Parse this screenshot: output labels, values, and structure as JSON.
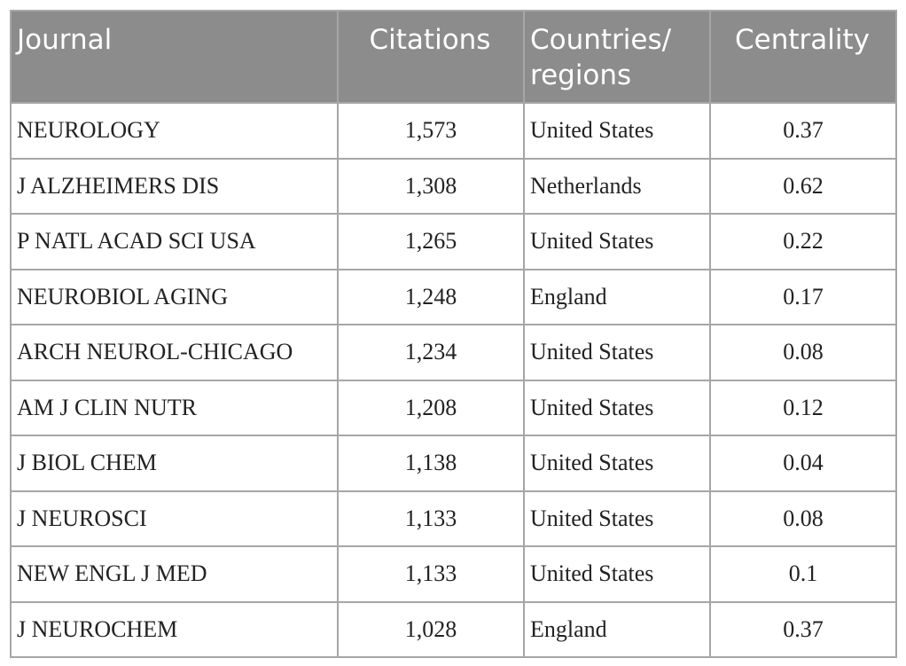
{
  "table": {
    "header": [
      "Journal",
      "Citations",
      "Countries/ regions",
      "Centrality"
    ],
    "rows": [
      [
        "NEUROLOGY",
        "1,573",
        "United States",
        "0.37"
      ],
      [
        "J ALZHEIMERS DIS",
        "1,308",
        "Netherlands",
        "0.62"
      ],
      [
        "P NATL ACAD SCI USA",
        "1,265",
        "United States",
        "0.22"
      ],
      [
        "NEUROBIOL AGING",
        "1,248",
        "England",
        "0.17"
      ],
      [
        "ARCH NEUROL-CHICAGO",
        "1,234",
        "United States",
        "0.08"
      ],
      [
        "AM J CLIN NUTR",
        "1,208",
        "United States",
        "0.12"
      ],
      [
        "J BIOL CHEM",
        "1,138",
        "United States",
        "0.04"
      ],
      [
        "J NEUROSCI",
        "1,133",
        "United States",
        "0.08"
      ],
      [
        "NEW ENGL J MED",
        "1,133",
        "United States",
        "0.1"
      ],
      [
        "J NEUROCHEM",
        "1,028",
        "England",
        "0.37"
      ]
    ]
  }
}
